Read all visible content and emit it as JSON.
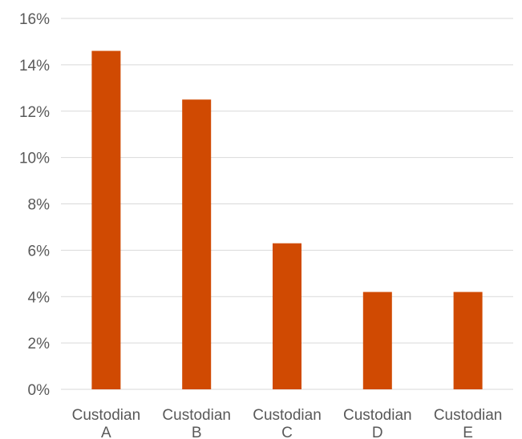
{
  "chart_data": {
    "type": "bar",
    "categories": [
      [
        "Custodian",
        "A"
      ],
      [
        "Custodian",
        "B"
      ],
      [
        "Custodian",
        "C"
      ],
      [
        "Custodian",
        "D"
      ],
      [
        "Custodian",
        "E"
      ]
    ],
    "values": [
      14.6,
      12.5,
      6.3,
      4.2,
      4.2
    ],
    "ylim": [
      0,
      16
    ],
    "yticks": [
      0,
      2,
      4,
      6,
      8,
      10,
      12,
      14,
      16
    ],
    "ytick_labels": [
      "0%",
      "2%",
      "4%",
      "6%",
      "8%",
      "10%",
      "12%",
      "14%",
      "16%"
    ],
    "title": "",
    "xlabel": "",
    "ylabel": "",
    "grid": true,
    "legend": "none",
    "bar_color": "#d04a02"
  }
}
